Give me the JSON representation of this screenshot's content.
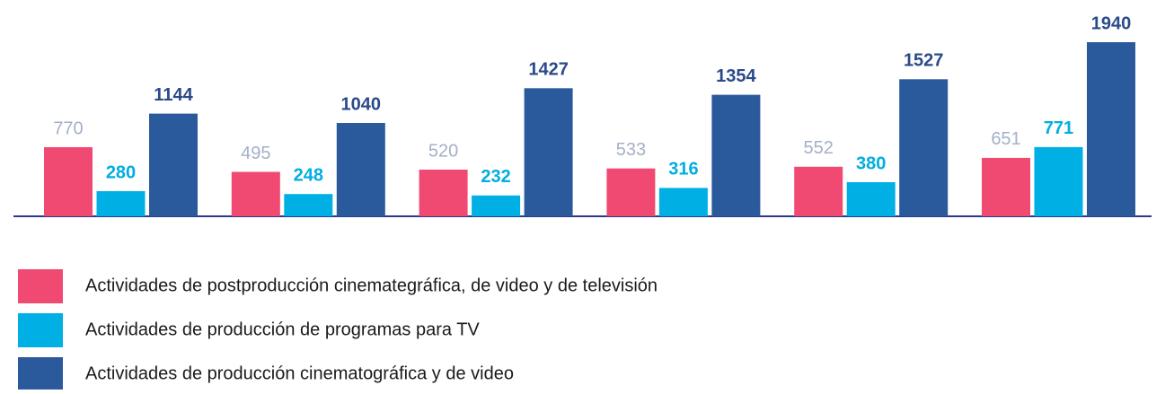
{
  "chart_data": {
    "type": "bar",
    "categories": [
      null,
      null,
      null,
      null,
      null,
      null
    ],
    "series": [
      {
        "name": "Actividades de postproducción cinemategráfica, de video y de televisión",
        "color": "#f04a73",
        "values": [
          770,
          495,
          520,
          533,
          552,
          651
        ]
      },
      {
        "name": "Actividades de producción de programas para TV",
        "color": "#00b0e4",
        "values": [
          280,
          248,
          232,
          316,
          380,
          771
        ]
      },
      {
        "name": "Actividades de producción cinematográfica y de video",
        "color": "#2a5a9c",
        "values": [
          1144,
          1040,
          1427,
          1354,
          1527,
          1940
        ]
      }
    ]
  }
}
